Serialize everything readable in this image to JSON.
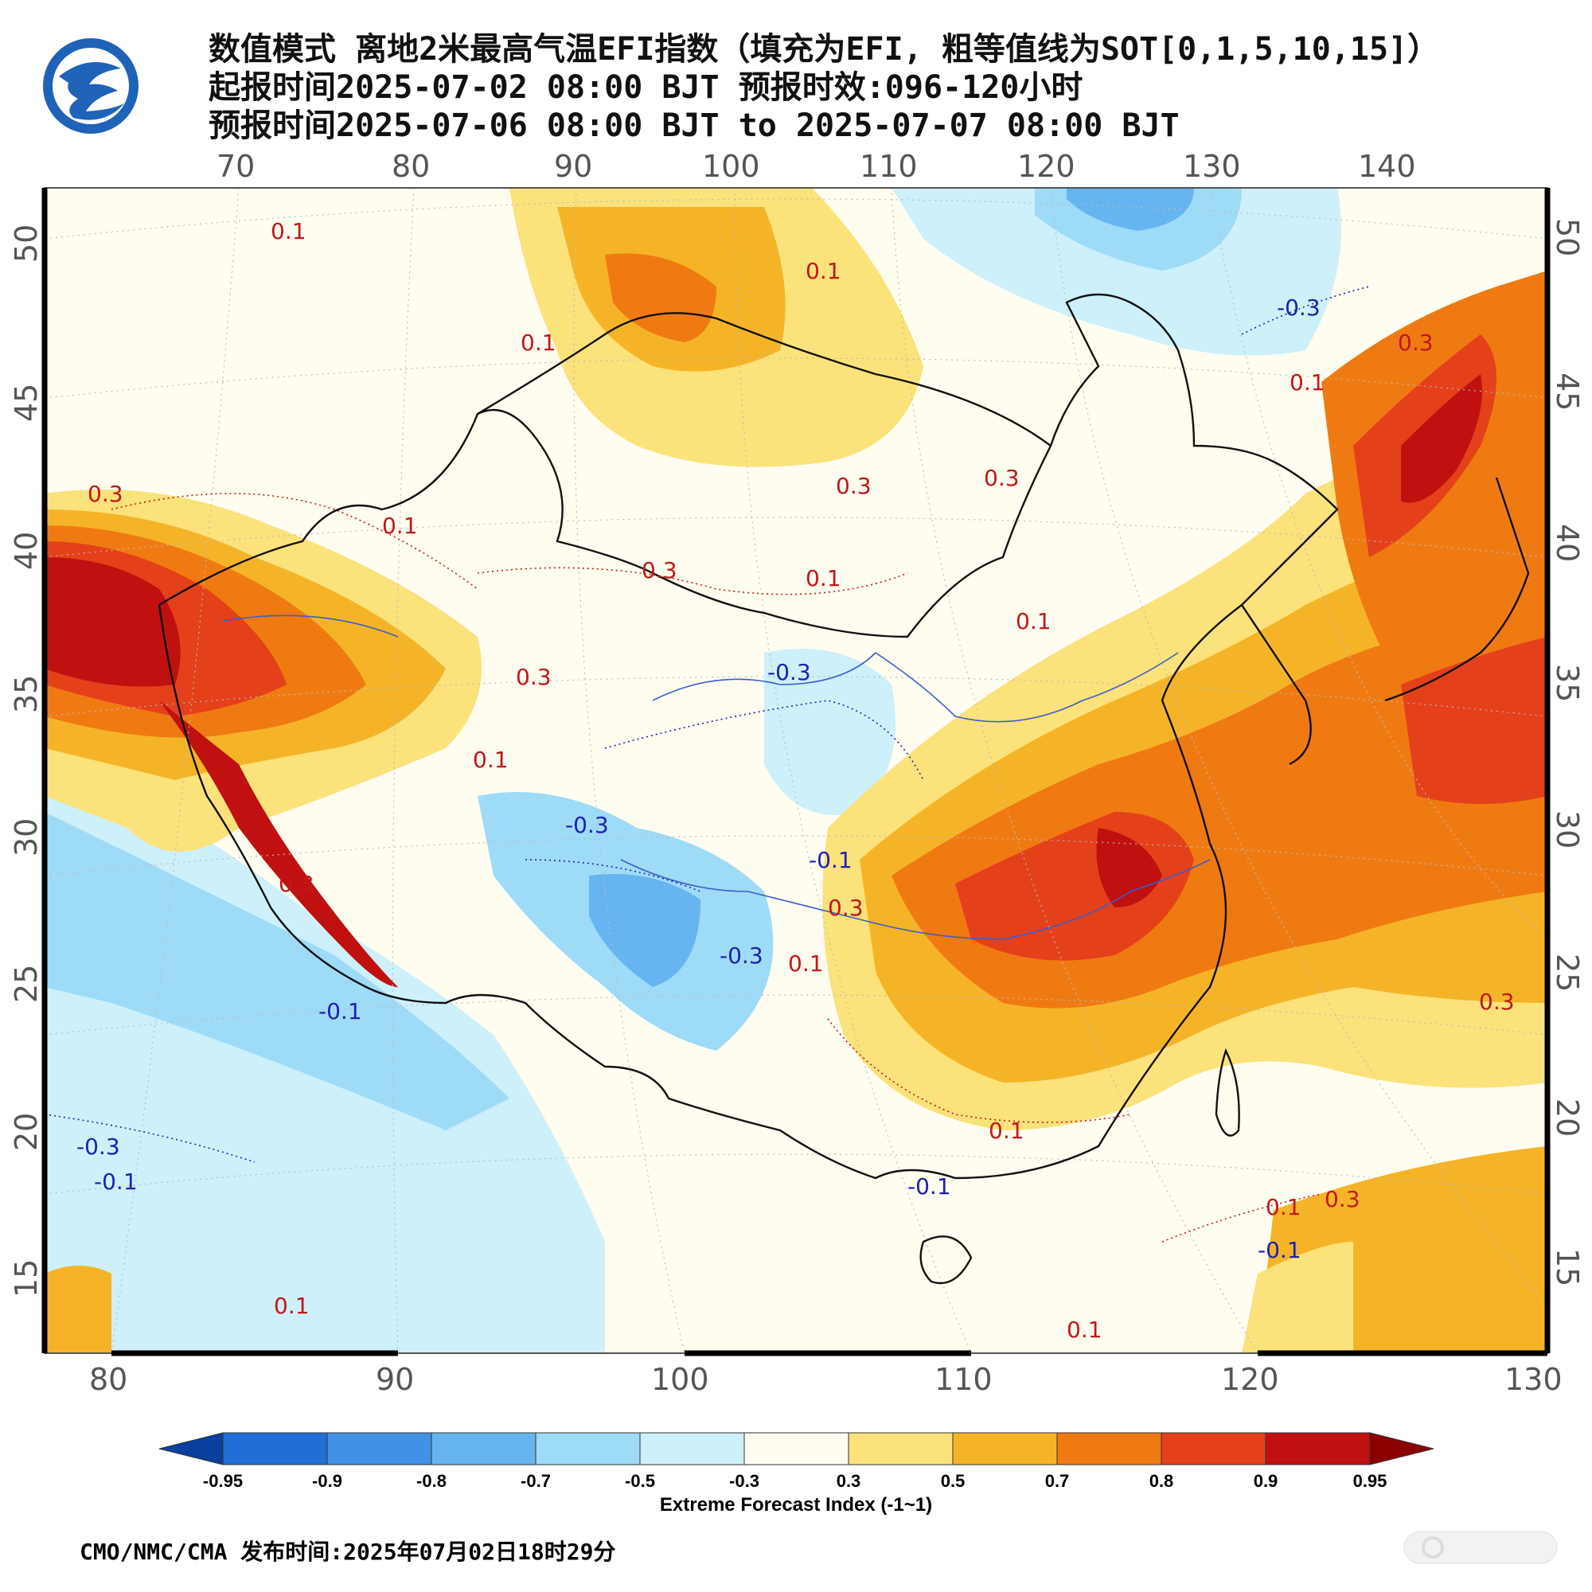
{
  "header": {
    "title_line1": "数值模式 离地2米最高气温EFI指数（填充为EFI, 粗等值线为SOT[0,1,5,10,15]）",
    "title_line2": "起报时间2025-07-02 08:00 BJT 预报时效:096-120小时",
    "title_line3": "预报时间2025-07-06 08:00 BJT to 2025-07-07 08:00 BJT"
  },
  "map": {
    "top_lon_ticks": [
      "70",
      "80",
      "90",
      "100",
      "110",
      "120",
      "130",
      "140"
    ],
    "bottom_lon_ticks": [
      "80",
      "90",
      "100",
      "110",
      "120",
      "130"
    ],
    "lat_ticks": [
      "50",
      "45",
      "40",
      "35",
      "30",
      "25",
      "20",
      "15"
    ],
    "contour_labels": [
      {
        "text": "0.1",
        "color": "red"
      },
      {
        "text": "0.1",
        "color": "red"
      },
      {
        "text": "0.1",
        "color": "red"
      },
      {
        "text": "0.3",
        "color": "red"
      },
      {
        "text": "0.3",
        "color": "red"
      },
      {
        "text": "-0.3",
        "color": "blue"
      },
      {
        "text": "0.1",
        "color": "red"
      },
      {
        "text": "0.3",
        "color": "red"
      },
      {
        "text": "0.1",
        "color": "red"
      },
      {
        "text": "0.3",
        "color": "red"
      },
      {
        "text": "0.1",
        "color": "red"
      },
      {
        "text": "0.3",
        "color": "red"
      },
      {
        "text": "-0.3",
        "color": "blue"
      },
      {
        "text": "0.3",
        "color": "red"
      },
      {
        "text": "0.1",
        "color": "red"
      },
      {
        "text": "-0.3",
        "color": "blue"
      },
      {
        "text": "-0.1",
        "color": "blue"
      },
      {
        "text": "0.3",
        "color": "red"
      },
      {
        "text": "-0.3",
        "color": "blue"
      },
      {
        "text": "0.1",
        "color": "red"
      },
      {
        "text": "-0.1",
        "color": "blue"
      },
      {
        "text": "-0.3",
        "color": "blue"
      },
      {
        "text": "-0.1",
        "color": "blue"
      },
      {
        "text": "0.1",
        "color": "red"
      },
      {
        "text": "0.3",
        "color": "red"
      },
      {
        "text": "0.1",
        "color": "red"
      },
      {
        "text": "-0.1",
        "color": "blue"
      },
      {
        "text": "-0.1",
        "color": "blue"
      },
      {
        "text": "0.1",
        "color": "red"
      },
      {
        "text": "0.1",
        "color": "red"
      },
      {
        "text": "0.3",
        "color": "red"
      },
      {
        "text": "0.1",
        "color": "red"
      },
      {
        "text": "0.3",
        "color": "red"
      }
    ]
  },
  "colorbar": {
    "labels": [
      "-0.95",
      "-0.9",
      "-0.8",
      "-0.7",
      "-0.5",
      "-0.3",
      "0.3",
      "0.5",
      "0.7",
      "0.8",
      "0.9",
      "0.95"
    ],
    "colors": [
      "#0a3fa0",
      "#1f6fd6",
      "#3f92e6",
      "#66b5f0",
      "#9edbf7",
      "#cdf0fb",
      "#fffdf0",
      "#fbe27a",
      "#f5b428",
      "#f07a12",
      "#e4401a",
      "#c01010",
      "#8c0000"
    ],
    "title": "Extreme Forecast Index (-1~1)"
  },
  "footer": {
    "text": "CMO/NMC/CMA 发布时间:2025年07月02日18时29分"
  }
}
